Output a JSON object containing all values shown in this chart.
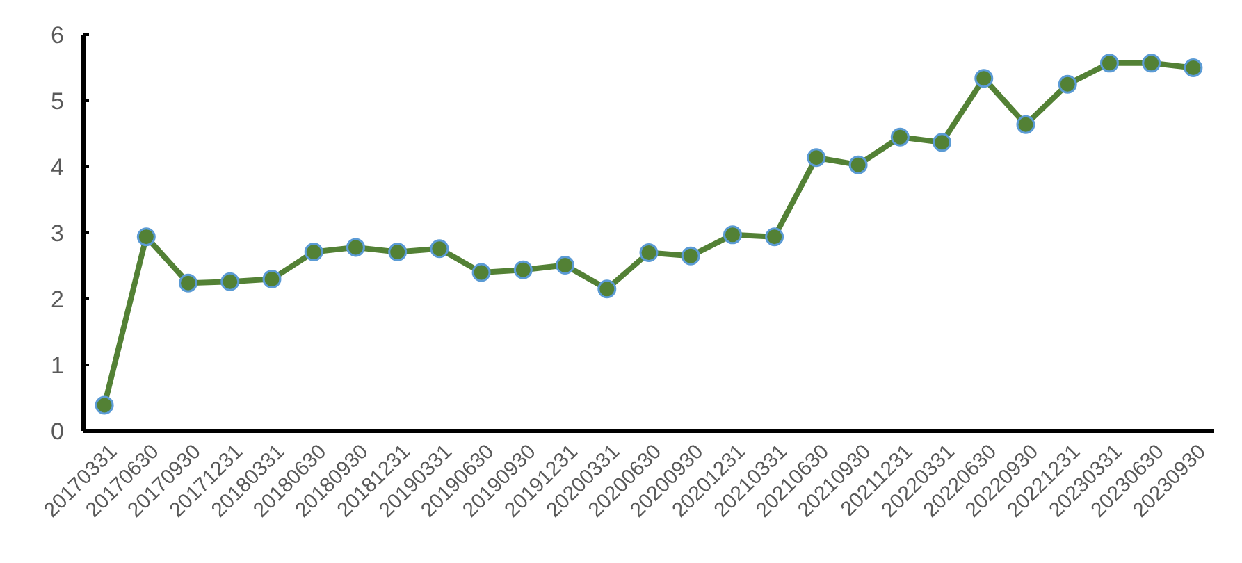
{
  "chart_data": {
    "type": "line",
    "categories": [
      "20170331",
      "20170630",
      "20170930",
      "20171231",
      "20180331",
      "20180630",
      "20180930",
      "20181231",
      "20190331",
      "20190630",
      "20190930",
      "20191231",
      "20200331",
      "20200630",
      "20200930",
      "20201231",
      "20210331",
      "20210630",
      "20210930",
      "20211231",
      "20220331",
      "20220630",
      "20220930",
      "20221231",
      "20230331",
      "20230630",
      "20230930"
    ],
    "series": [
      {
        "color": "#538135",
        "values": [
          0.39,
          2.94,
          2.24,
          2.26,
          2.3,
          2.71,
          2.78,
          2.71,
          2.76,
          2.4,
          2.44,
          2.51,
          2.15,
          2.7,
          2.65,
          2.97,
          2.94,
          4.14,
          4.03,
          4.45,
          4.37,
          5.34,
          4.64,
          5.25,
          5.57,
          5.57,
          5.5
        ]
      }
    ],
    "ylim": [
      0,
      6
    ],
    "yticks": [
      0,
      1,
      2,
      3,
      4,
      5,
      6
    ],
    "grid": false,
    "marker": "circle",
    "line_style": "solid"
  }
}
